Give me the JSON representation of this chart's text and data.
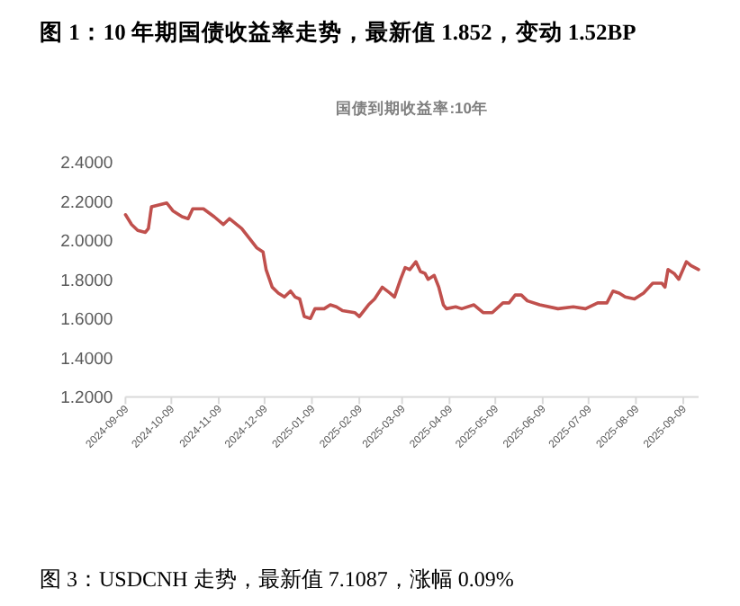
{
  "chart_data": {
    "type": "line",
    "title": "图 1：10 年期国债收益率走势，最新值 1.852，变动 1.52BP",
    "subtitle": "国债到期收益率:10年",
    "annotations": [
      "图 3：USDCNH 走势，最新值 7.1087，涨幅 0.09%"
    ],
    "series": [
      {
        "color": "#c0504d",
        "x": [
          "2024-09-09",
          "2024-09-13",
          "2024-09-17",
          "2024-09-22",
          "2024-09-24",
          "2024-09-26",
          "2024-10-06",
          "2024-10-10",
          "2024-10-16",
          "2024-10-20",
          "2024-10-23",
          "2024-10-30",
          "2024-11-06",
          "2024-11-12",
          "2024-11-16",
          "2024-11-24",
          "2024-11-30",
          "2024-12-04",
          "2024-12-08",
          "2024-12-10",
          "2024-12-14",
          "2024-12-18",
          "2024-12-22",
          "2024-12-26",
          "2024-12-29",
          "2025-01-01",
          "2025-01-04",
          "2025-01-08",
          "2025-01-11",
          "2025-01-17",
          "2025-01-21",
          "2025-01-25",
          "2025-01-29",
          "2025-02-06",
          "2025-02-09",
          "2025-02-15",
          "2025-02-19",
          "2025-02-24",
          "2025-03-01",
          "2025-03-04",
          "2025-03-08",
          "2025-03-11",
          "2025-03-14",
          "2025-03-18",
          "2025-03-21",
          "2025-03-24",
          "2025-03-26",
          "2025-03-30",
          "2025-04-02",
          "2025-04-05",
          "2025-04-07",
          "2025-04-13",
          "2025-04-17",
          "2025-04-25",
          "2025-05-01",
          "2025-05-07",
          "2025-05-14",
          "2025-05-18",
          "2025-05-22",
          "2025-05-26",
          "2025-05-30",
          "2025-06-07",
          "2025-06-19",
          "2025-06-29",
          "2025-07-07",
          "2025-07-15",
          "2025-07-21",
          "2025-07-25",
          "2025-07-29",
          "2025-08-02",
          "2025-08-08",
          "2025-08-14",
          "2025-08-20",
          "2025-08-26",
          "2025-08-28",
          "2025-08-30",
          "2025-09-03",
          "2025-09-06",
          "2025-09-11",
          "2025-09-14",
          "2025-09-19"
        ],
        "values": [
          2.13,
          2.08,
          2.05,
          2.04,
          2.06,
          2.17,
          2.19,
          2.15,
          2.12,
          2.11,
          2.16,
          2.16,
          2.12,
          2.08,
          2.11,
          2.06,
          2.0,
          1.96,
          1.94,
          1.85,
          1.76,
          1.73,
          1.71,
          1.74,
          1.71,
          1.7,
          1.61,
          1.6,
          1.65,
          1.65,
          1.67,
          1.66,
          1.64,
          1.63,
          1.61,
          1.67,
          1.7,
          1.76,
          1.73,
          1.71,
          1.8,
          1.86,
          1.85,
          1.89,
          1.84,
          1.83,
          1.8,
          1.82,
          1.76,
          1.67,
          1.65,
          1.66,
          1.65,
          1.67,
          1.63,
          1.63,
          1.68,
          1.68,
          1.72,
          1.72,
          1.69,
          1.67,
          1.65,
          1.66,
          1.65,
          1.68,
          1.68,
          1.74,
          1.73,
          1.71,
          1.7,
          1.73,
          1.78,
          1.78,
          1.76,
          1.85,
          1.83,
          1.8,
          1.89,
          1.87,
          1.85
        ]
      }
    ],
    "xlim": [
      "2024-09-09",
      "2025-09-19"
    ],
    "xticks": [
      "2024-09-09",
      "2024-10-09",
      "2024-11-09",
      "2024-12-09",
      "2025-01-09",
      "2025-02-09",
      "2025-03-09",
      "2025-04-09",
      "2025-05-09",
      "2025-06-09",
      "2025-07-09",
      "2025-08-09",
      "2025-09-09"
    ],
    "ylim": [
      1.2,
      2.4
    ],
    "yticks": [
      {
        "value": 1.2,
        "label": "1.2000"
      },
      {
        "value": 1.4,
        "label": "1.4000"
      },
      {
        "value": 1.6,
        "label": "1.6000"
      },
      {
        "value": 1.8,
        "label": "1.8000"
      },
      {
        "value": 2.0,
        "label": "2.0000"
      },
      {
        "value": 2.2,
        "label": "2.2000"
      },
      {
        "value": 2.4,
        "label": "2.4000"
      }
    ],
    "grid": false,
    "marker": "none",
    "line_style": "solid"
  }
}
